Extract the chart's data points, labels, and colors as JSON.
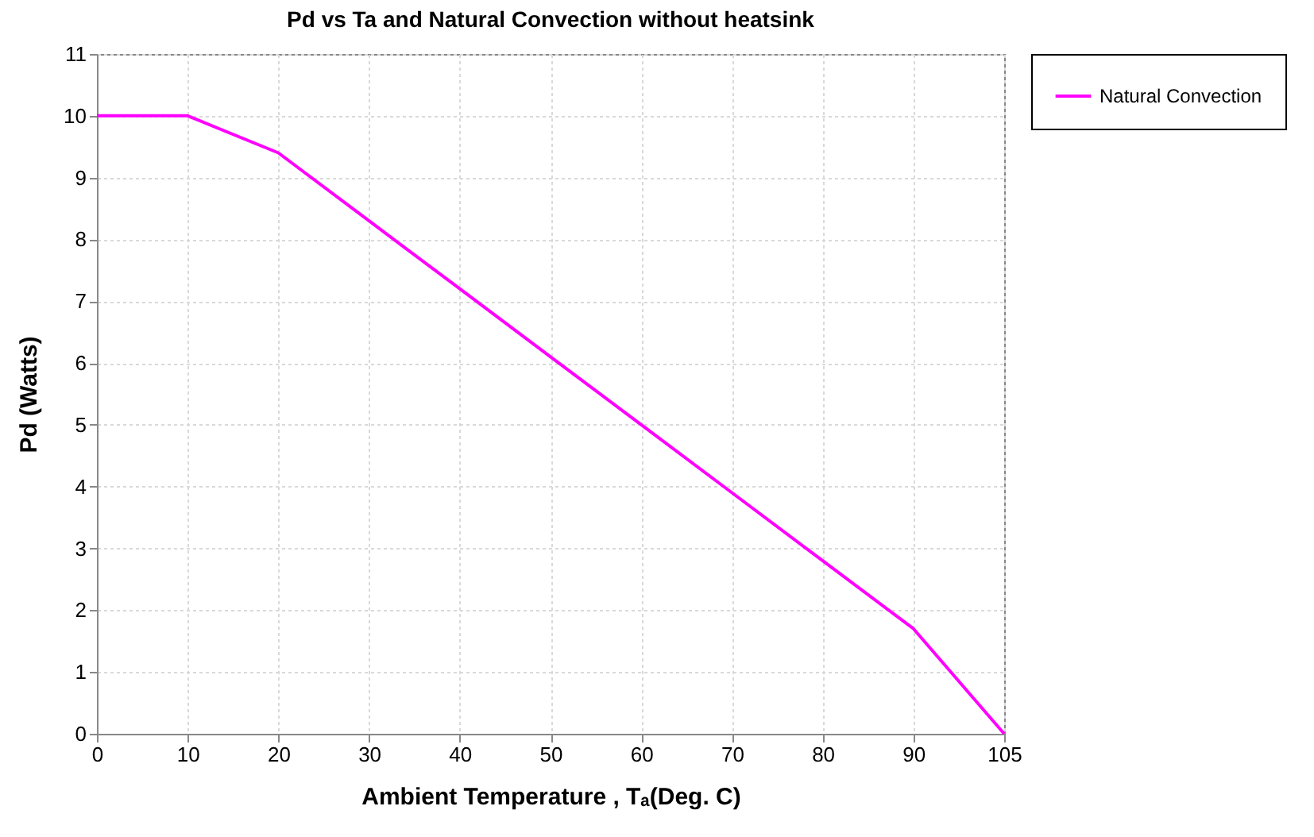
{
  "chart_data": {
    "type": "line",
    "title": "Pd vs Ta and Natural Convection without heatsink",
    "xlabel": "Ambient Temperature , Tₐ(Deg. C)",
    "ylabel": "Pd (Watts)",
    "categories": [
      "0",
      "10",
      "20",
      "30",
      "40",
      "50",
      "60",
      "70",
      "80",
      "90",
      "105"
    ],
    "series": [
      {
        "name": "Natural Convection",
        "color": "#ff00ff",
        "values": [
          10,
          10,
          9.4,
          8.3,
          7.2,
          6.1,
          5.0,
          3.9,
          2.8,
          1.7,
          0
        ]
      }
    ],
    "ylim": [
      0,
      11
    ],
    "yticks": [
      0,
      1,
      2,
      3,
      4,
      5,
      6,
      7,
      8,
      9,
      10,
      11
    ],
    "grid": true,
    "legend": "right",
    "marker": "none",
    "line_style": "solid"
  }
}
